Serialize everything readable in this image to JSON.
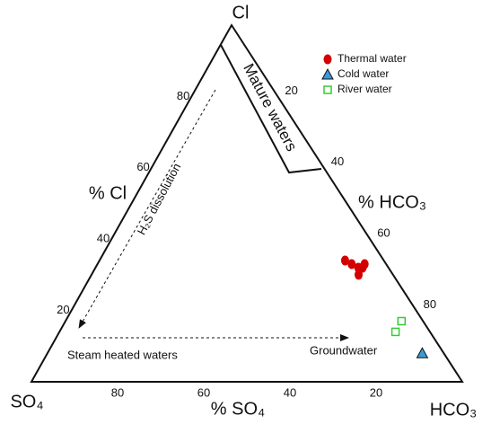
{
  "chart_data": {
    "type": "ternary",
    "vertices": {
      "top": "Cl",
      "left": "SO₄",
      "right": "HCO₃"
    },
    "axis_labels": {
      "cl": "% Cl",
      "so4": "% SO₄",
      "hco3": "% HCO₃"
    },
    "cl_ticks": [
      20,
      40,
      60,
      80
    ],
    "so4_ticks": [
      20,
      40,
      60,
      80
    ],
    "hco3_ticks": [
      20,
      40,
      60,
      80
    ],
    "annotations": {
      "mature": "Mature waters",
      "h2s": "H₂S dissolution",
      "steam": "Steam heated waters",
      "ground": "Groundwater"
    },
    "series": [
      {
        "name": "Thermal water",
        "color": "#d40000",
        "marker": "circle",
        "cl": [
          33,
          32,
          32,
          33,
          30,
          34
        ],
        "so4": [
          8,
          7,
          6,
          5,
          8,
          9
        ],
        "hco3": [
          59,
          61,
          62,
          62,
          62,
          57
        ]
      },
      {
        "name": "Cold water",
        "color": "#3a9ad9",
        "marker": "triangle",
        "cl": [
          8
        ],
        "so4": [
          5
        ],
        "hco3": [
          87
        ]
      },
      {
        "name": "River water",
        "color": "#33cc33",
        "marker": "square",
        "cl": [
          17,
          14
        ],
        "so4": [
          5,
          8
        ],
        "hco3": [
          78,
          78
        ]
      }
    ]
  }
}
